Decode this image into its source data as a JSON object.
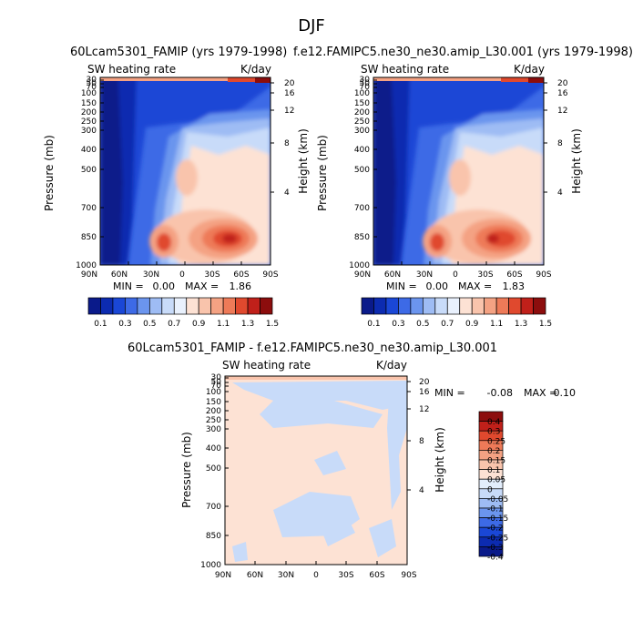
{
  "page": {
    "season": "DJF"
  },
  "colors": {
    "scale": [
      "#0a1a8a",
      "#0c2bb0",
      "#1a47d6",
      "#3d6ae6",
      "#6b95ee",
      "#9ebcf4",
      "#c8dbf9",
      "#e9f1fd",
      "#fde2d4",
      "#f9c4ac",
      "#f4a283",
      "#ee7a58",
      "#e0492e",
      "#c0201a",
      "#8c0d0d"
    ],
    "diff_scale": [
      "#0a1a8a",
      "#0c2bb0",
      "#1a47d6",
      "#3d6ae6",
      "#6b95ee",
      "#9ebcf4",
      "#c8dbf9",
      "#e3eefc",
      "#fde2d4",
      "#f9c4ac",
      "#f4a283",
      "#ee7a58",
      "#e0492e",
      "#c0201a",
      "#8c0d0d"
    ]
  },
  "chart_data": [
    {
      "type": "heatmap",
      "title": "60Lcam5301_FAMIP (yrs 1979-1998)",
      "subtitle_left": "SW heating rate",
      "subtitle_right": "K/day",
      "ylabel": "Pressure (mb)",
      "y2label": "Height (km)",
      "x_ticks": [
        "90N",
        "60N",
        "30N",
        "0",
        "30S",
        "60S",
        "90S"
      ],
      "y_ticks": [
        "30",
        "50",
        "70",
        "100",
        "150",
        "200",
        "250",
        "300",
        "400",
        "500",
        "700",
        "850",
        "1000"
      ],
      "y2_ticks": [
        "20",
        "16",
        "12",
        "8",
        "4"
      ],
      "min_label": "MIN =",
      "min": "0.00",
      "max_label": "MAX =",
      "max": "1.86",
      "legend": [
        "0.1",
        "0.3",
        "0.5",
        "0.7",
        "0.9",
        "1.1",
        "1.3",
        "1.5"
      ]
    },
    {
      "type": "heatmap",
      "title": "f.e12.FAMIPC5.ne30_ne30.amip_L30.001 (yrs 1979-1998)",
      "subtitle_left": "SW heating rate",
      "subtitle_right": "K/day",
      "ylabel": "Pressure (mb)",
      "y2label": "Height (km)",
      "x_ticks": [
        "90N",
        "60N",
        "30N",
        "0",
        "30S",
        "60S",
        "90S"
      ],
      "y_ticks": [
        "30",
        "50",
        "70",
        "100",
        "150",
        "200",
        "250",
        "300",
        "400",
        "500",
        "700",
        "850",
        "1000"
      ],
      "y2_ticks": [
        "20",
        "16",
        "12",
        "8",
        "4"
      ],
      "min_label": "MIN =",
      "min": "0.00",
      "max_label": "MAX =",
      "max": "1.83",
      "legend": [
        "0.1",
        "0.3",
        "0.5",
        "0.7",
        "0.9",
        "1.1",
        "1.3",
        "1.5"
      ]
    },
    {
      "type": "heatmap",
      "title": "60Lcam5301_FAMIP - f.e12.FAMIPC5.ne30_ne30.amip_L30.001",
      "subtitle_left": "SW heating rate",
      "subtitle_right": "K/day",
      "ylabel": "Pressure (mb)",
      "y2label": "Height (km)",
      "x_ticks": [
        "90N",
        "60N",
        "30N",
        "0",
        "30S",
        "60S",
        "90S"
      ],
      "y_ticks": [
        "30",
        "50",
        "70",
        "100",
        "150",
        "200",
        "250",
        "300",
        "400",
        "500",
        "700",
        "850",
        "1000"
      ],
      "y2_ticks": [
        "20",
        "16",
        "12",
        "8",
        "4"
      ],
      "min_label": "MIN =",
      "min": "-0.08",
      "max_label": "MAX =",
      "max": "0.10",
      "legend": [
        "0.4",
        "0.3",
        "0.25",
        "0.2",
        "0.15",
        "0.1",
        "0.05",
        "0",
        "-0.05",
        "-0.1",
        "-0.15",
        "-0.2",
        "-0.25",
        "-0.3",
        "-0.4"
      ]
    }
  ]
}
